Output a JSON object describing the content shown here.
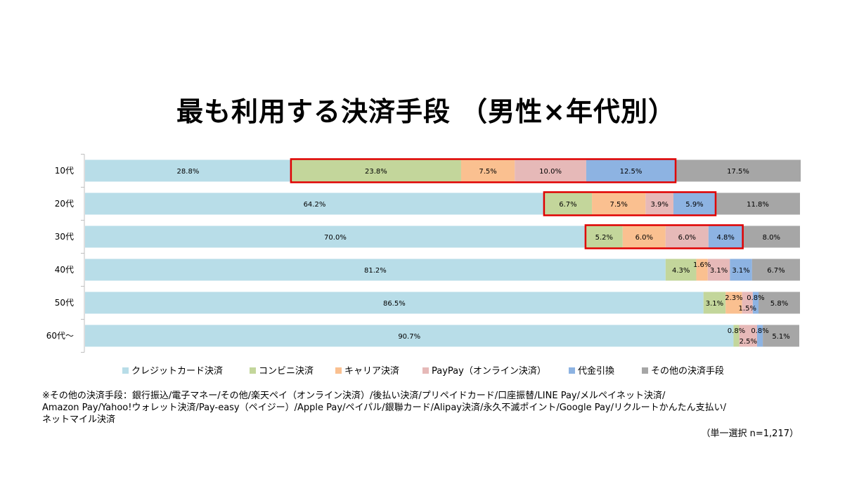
{
  "chart_data": {
    "type": "bar",
    "orientation": "horizontal",
    "stacked": true,
    "percent_stacked": true,
    "title": "最も利用する決済手段 （男性×年代別）",
    "categories": [
      "10代",
      "20代",
      "30代",
      "40代",
      "50代",
      "60代～"
    ],
    "xlim": [
      0,
      100
    ],
    "grid": false,
    "legend_position": "bottom",
    "series": [
      {
        "name": "クレジットカード決済",
        "color": "#b8dde8",
        "values": [
          28.8,
          64.2,
          70.0,
          81.2,
          86.5,
          90.7
        ],
        "labels": [
          "28.8%",
          "64.2%",
          "70.0%",
          "81.2%",
          "86.5%",
          "90.7%"
        ]
      },
      {
        "name": "コンビニ決済",
        "color": "#c3d69b",
        "values": [
          23.8,
          6.7,
          5.2,
          4.3,
          3.1,
          0.8
        ],
        "labels": [
          "23.8%",
          "6.7%",
          "5.2%",
          "4.3%",
          "3.1%",
          "0.8%"
        ]
      },
      {
        "name": "キャリア決済",
        "color": "#fac090",
        "values": [
          7.5,
          7.5,
          6.0,
          1.6,
          2.3,
          0.0
        ],
        "labels": [
          "7.5%",
          "7.5%",
          "6.0%",
          "1.6%",
          "2.3%",
          ""
        ]
      },
      {
        "name": "PayPay（オンライン決済）",
        "color": "#e6b9b8",
        "values": [
          10.0,
          3.9,
          6.0,
          3.1,
          1.5,
          2.5
        ],
        "labels": [
          "10.0%",
          "3.9%",
          "6.0%",
          "3.1%",
          "1.5%",
          "2.5%"
        ]
      },
      {
        "name": "代金引換",
        "color": "#8db3e2",
        "values": [
          12.5,
          5.9,
          4.8,
          3.1,
          0.8,
          0.8
        ],
        "labels": [
          "12.5%",
          "5.9%",
          "4.8%",
          "3.1%",
          "0.8%",
          "0.8%"
        ]
      },
      {
        "name": "その他の決済手段",
        "color": "#a6a6a6",
        "values": [
          17.5,
          11.8,
          8.0,
          6.7,
          5.8,
          5.1
        ],
        "labels": [
          "17.5%",
          "11.8%",
          "8.0%",
          "6.7%",
          "5.8%",
          "5.1%"
        ]
      }
    ],
    "highlight": {
      "color": "#e00000",
      "rows": [
        0,
        1,
        2
      ],
      "from_series": 1,
      "to_series": 4
    }
  },
  "footnote": {
    "lines": [
      "※その他の決済手段：銀行振込/電子マネー/その他/楽天ペイ（オンライン決済）/後払い決済/プリペイドカード/口座振替/LINE Pay/メルペイネット決済/",
      "Amazon Pay/Yahoo!ウォレット決済/Pay-easy（ペイジー）/Apple Pay/ペイパル/銀聯カード/Alipay決済/永久不滅ポイント/Google Pay/リクルートかんたん支払い/",
      "ネットマイル決済"
    ]
  },
  "sample_note": "（単一選択 n=1,217）"
}
